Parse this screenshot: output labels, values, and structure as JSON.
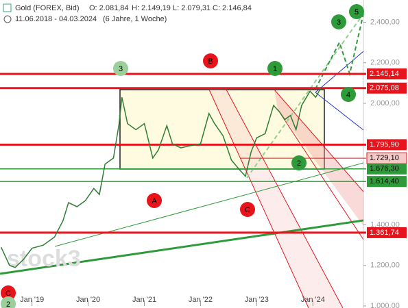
{
  "header": {
    "instrument": "Gold (FOREX, Bid)",
    "open": "O: 2.081,84",
    "high": "H: 2.149,19",
    "low": "L: 2.079,31",
    "close": "C: 2.146,84",
    "range": "11.06.2018 - 04.03.2024",
    "span": "(6 Jahre, 1 Woche)",
    "watermark": "stock3"
  },
  "chart_data": {
    "type": "line",
    "color": "#2e7d32",
    "x": [
      2018.45,
      2018.6,
      2018.7,
      2018.85,
      2019.0,
      2019.2,
      2019.4,
      2019.55,
      2019.65,
      2019.8,
      2019.95,
      2020.1,
      2020.2,
      2020.3,
      2020.45,
      2020.55,
      2020.6,
      2020.7,
      2020.85,
      2021.0,
      2021.15,
      2021.25,
      2021.4,
      2021.5,
      2021.65,
      2021.8,
      2022.0,
      2022.15,
      2022.25,
      2022.4,
      2022.55,
      2022.7,
      2022.8,
      2022.9,
      2023.0,
      2023.15,
      2023.3,
      2023.4,
      2023.5,
      2023.6,
      2023.7,
      2023.8,
      2023.95,
      2024.05,
      2024.15
    ],
    "values": [
      1290,
      1200,
      1190,
      1230,
      1285,
      1300,
      1340,
      1420,
      1510,
      1490,
      1520,
      1580,
      1550,
      1700,
      1730,
      1900,
      2030,
      1900,
      1870,
      1900,
      1730,
      1770,
      1890,
      1800,
      1780,
      1790,
      1800,
      1950,
      1900,
      1840,
      1720,
      1670,
      1640,
      1760,
      1830,
      1850,
      1990,
      1960,
      1920,
      1940,
      1870,
      1990,
      2060,
      2030,
      2080
    ],
    "xlim": [
      2018.43,
      2024.9
    ],
    "ylim": [
      1000,
      2510
    ],
    "xticks": [
      {
        "value": 2019,
        "label": "Jan '19"
      },
      {
        "value": 2020,
        "label": "Jan '20"
      },
      {
        "value": 2021,
        "label": "Jan '21"
      },
      {
        "value": 2022,
        "label": "Jan '22"
      },
      {
        "value": 2023,
        "label": "Jan '23"
      },
      {
        "value": 2024,
        "label": "Jan '24"
      }
    ],
    "yticks": [
      {
        "value": 1000,
        "label": "1.000,00"
      },
      {
        "value": 1200,
        "label": "1.200,00"
      },
      {
        "value": 1400,
        "label": "1.400,00"
      },
      {
        "value": 2000,
        "label": "2.000,00"
      },
      {
        "value": 2200,
        "label": "2.200,00"
      },
      {
        "value": 2400,
        "label": "2.400,00"
      }
    ],
    "levels": [
      {
        "value": 2145.14,
        "label": "2.145,14",
        "color": "#e8141b"
      },
      {
        "value": 2075.08,
        "label": "2.075,08",
        "color": "#e8141b"
      },
      {
        "value": 1795.9,
        "label": "1.795,90",
        "color": "#e8141b"
      },
      {
        "value": 1729.1,
        "label": "1.729,10",
        "color": "#f6c9c9"
      },
      {
        "value": 1676.3,
        "label": "1.676,30",
        "color": "#2e9a3a"
      },
      {
        "value": 1614.4,
        "label": "1.614,40",
        "color": "#2e9a3a"
      },
      {
        "value": 1361.74,
        "label": "1.361,74",
        "color": "#e8141b"
      }
    ],
    "markers": [
      {
        "label": "3",
        "color": "#9ccf9c"
      },
      {
        "label": "B",
        "color": "#e8141b"
      },
      {
        "label": "1",
        "color": "#2e9a3a"
      },
      {
        "label": "A",
        "color": "#e8141b"
      },
      {
        "label": "C",
        "color": "#e8141b"
      },
      {
        "label": "2",
        "color": "#2e9a3a"
      },
      {
        "label": "4",
        "color": "#2e9a3a"
      },
      {
        "label": "3",
        "color": "#2e9a3a"
      },
      {
        "label": "5",
        "color": "#2e9a3a"
      },
      {
        "label": "C",
        "color": "#e8141b"
      },
      {
        "label": "2",
        "color": "#9ccf9c"
      }
    ]
  }
}
